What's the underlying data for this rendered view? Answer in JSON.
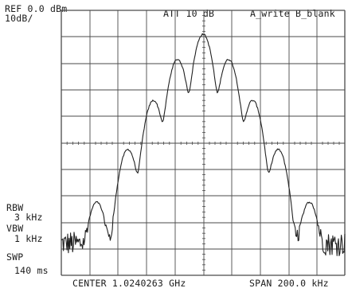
{
  "header": {
    "ref_level": "REF 0.0 dBm",
    "scale": "10dB/",
    "attenuation": "ATT 10 dB",
    "trace_mode": "A_write B_blank"
  },
  "settings": {
    "rbw_label": "RBW",
    "rbw_value": "3 kHz",
    "vbw_label": "VBW",
    "vbw_value": "1 kHz",
    "swp_label": "SWP",
    "swp_value": "140 ms"
  },
  "footer": {
    "center": "CENTER 1.0240263 GHz",
    "span": "SPAN 200.0 kHz"
  },
  "colors": {
    "trace": "#202020",
    "grid": "#4a4a4a",
    "background": "#ffffff"
  },
  "chart_data": {
    "type": "line",
    "title": "",
    "xlabel": "",
    "ylabel": "",
    "x_unit": "kHz offset from center",
    "y_unit": "dBm",
    "xlim": [
      -100,
      100
    ],
    "ylim": [
      -100,
      0
    ],
    "grid": true,
    "noise_floor_dbm": -88,
    "peaks": [
      {
        "x": -75,
        "y": -72.5
      },
      {
        "x": -53,
        "y": -52.5
      },
      {
        "x": -35,
        "y": -34
      },
      {
        "x": -18,
        "y": -18.5
      },
      {
        "x": 0,
        "y": -9
      },
      {
        "x": 18,
        "y": -18.5
      },
      {
        "x": 35,
        "y": -34
      },
      {
        "x": 53,
        "y": -52.5
      },
      {
        "x": 75,
        "y": -72.5
      }
    ],
    "series": [
      {
        "values": []
      }
    ]
  }
}
